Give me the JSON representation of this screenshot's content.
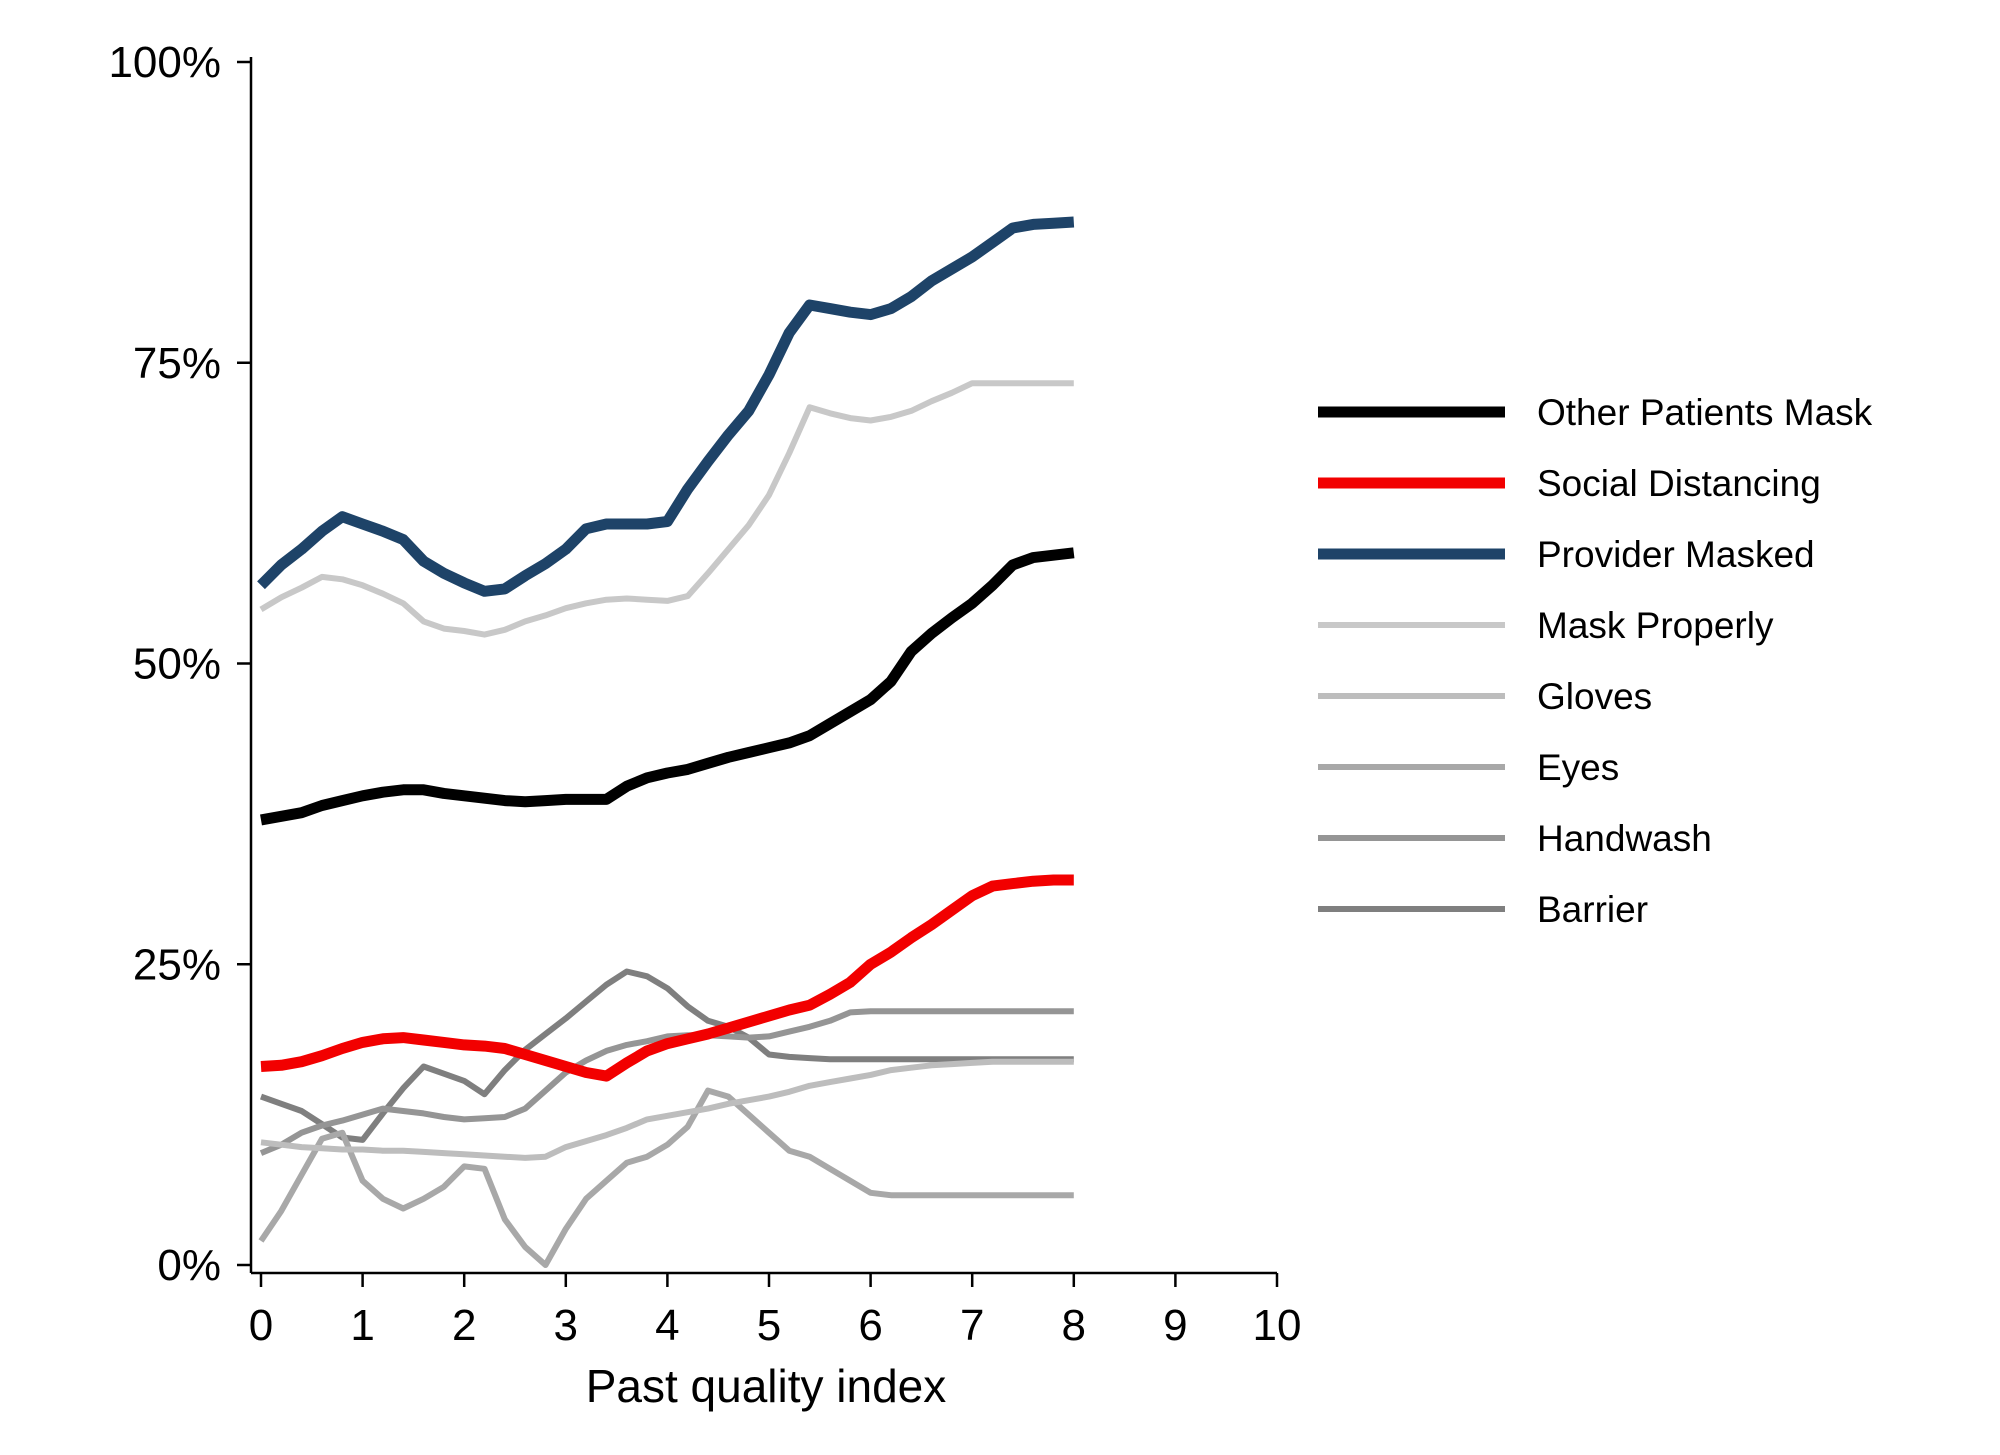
{
  "chart_data": {
    "type": "line",
    "xlabel": "Past quality index",
    "ylabel": "",
    "xlim": [
      0,
      10
    ],
    "ylim": [
      0,
      100
    ],
    "x_ticks": [
      0,
      1,
      2,
      3,
      4,
      5,
      6,
      7,
      8,
      9,
      10
    ],
    "x_tick_labels": [
      "0",
      "1",
      "2",
      "3",
      "4",
      "5",
      "6",
      "7",
      "8",
      "9",
      "10"
    ],
    "y_ticks": [
      0,
      25,
      50,
      75,
      100
    ],
    "y_tick_labels": [
      "0%",
      "25%",
      "50%",
      "75%",
      "100%"
    ],
    "grid": false,
    "legend_position": "right",
    "x": [
      0,
      0.2,
      0.4,
      0.6,
      0.8,
      1.0,
      1.2,
      1.4,
      1.6,
      1.8,
      2.0,
      2.2,
      2.4,
      2.6,
      2.8,
      3.0,
      3.2,
      3.4,
      3.6,
      3.8,
      4.0,
      4.2,
      4.4,
      4.6,
      4.8,
      5.0,
      5.2,
      5.4,
      5.6,
      5.8,
      6.0,
      6.2,
      6.4,
      6.6,
      6.8,
      7.0,
      7.2,
      7.4,
      7.6,
      7.8,
      8.0
    ],
    "series": [
      {
        "name": "Other Patients Mask",
        "color": "#000000",
        "width": 11,
        "values": [
          37.0,
          37.3,
          37.6,
          38.2,
          38.6,
          39.0,
          39.3,
          39.5,
          39.5,
          39.2,
          39.0,
          38.8,
          38.6,
          38.5,
          38.6,
          38.7,
          38.7,
          38.7,
          39.8,
          40.5,
          40.9,
          41.2,
          41.7,
          42.2,
          42.6,
          43.0,
          43.4,
          44.0,
          45.0,
          46.0,
          47.0,
          48.5,
          51.0,
          52.5,
          53.8,
          55.0,
          56.5,
          58.2,
          58.8,
          59.0,
          59.2
        ]
      },
      {
        "name": "Social Distancing",
        "color": "#f20000",
        "width": 11,
        "values": [
          16.5,
          16.6,
          16.9,
          17.4,
          18.0,
          18.5,
          18.8,
          18.9,
          18.7,
          18.5,
          18.3,
          18.2,
          18.0,
          17.5,
          17.0,
          16.5,
          16.0,
          15.7,
          16.8,
          17.8,
          18.4,
          18.8,
          19.2,
          19.7,
          20.2,
          20.7,
          21.2,
          21.6,
          22.5,
          23.5,
          25.0,
          26.0,
          27.2,
          28.3,
          29.5,
          30.7,
          31.5,
          31.7,
          31.9,
          32.0,
          32.0
        ]
      },
      {
        "name": "Provider Masked",
        "color": "#1e4368",
        "width": 11,
        "values": [
          56.5,
          58.2,
          59.5,
          61.0,
          62.2,
          61.6,
          61.0,
          60.3,
          58.5,
          57.5,
          56.7,
          56.0,
          56.2,
          57.3,
          58.3,
          59.5,
          61.2,
          61.6,
          61.6,
          61.6,
          61.8,
          64.5,
          66.8,
          69.0,
          71.0,
          74.0,
          77.5,
          79.8,
          79.5,
          79.2,
          79.0,
          79.5,
          80.5,
          81.8,
          82.8,
          83.8,
          85.0,
          86.2,
          86.5,
          86.6,
          86.7
        ]
      },
      {
        "name": "Mask Properly",
        "color": "#c8c8c8",
        "width": 6,
        "values": [
          54.5,
          55.5,
          56.3,
          57.2,
          57.0,
          56.5,
          55.8,
          55.0,
          53.5,
          52.9,
          52.7,
          52.4,
          52.8,
          53.5,
          54.0,
          54.6,
          55.0,
          55.3,
          55.4,
          55.3,
          55.2,
          55.6,
          57.5,
          59.5,
          61.5,
          64.0,
          67.5,
          71.3,
          70.8,
          70.4,
          70.2,
          70.5,
          71.0,
          71.8,
          72.5,
          73.3,
          73.3,
          73.3,
          73.3,
          73.3,
          73.3
        ]
      },
      {
        "name": "Gloves",
        "color": "#bdbdbd",
        "width": 6,
        "values": [
          10.2,
          10.0,
          9.8,
          9.7,
          9.6,
          9.6,
          9.5,
          9.5,
          9.4,
          9.3,
          9.2,
          9.1,
          9.0,
          8.9,
          9.0,
          9.8,
          10.3,
          10.8,
          11.4,
          12.1,
          12.4,
          12.7,
          13.0,
          13.4,
          13.7,
          14.0,
          14.4,
          14.9,
          15.2,
          15.5,
          15.8,
          16.2,
          16.4,
          16.6,
          16.7,
          16.8,
          16.9,
          16.9,
          16.9,
          16.9,
          16.9
        ]
      },
      {
        "name": "Eyes",
        "color": "#a8a8a8",
        "width": 6,
        "values": [
          2.0,
          4.5,
          7.5,
          10.5,
          11.0,
          7.0,
          5.5,
          4.7,
          5.5,
          6.5,
          8.2,
          8.0,
          3.8,
          1.5,
          0.0,
          3.0,
          5.5,
          7.0,
          8.5,
          9.0,
          10.0,
          11.5,
          14.5,
          14.0,
          12.5,
          11.0,
          9.5,
          9.0,
          8.0,
          7.0,
          6.0,
          5.8,
          5.8,
          5.8,
          5.8,
          5.8,
          5.8,
          5.8,
          5.8,
          5.8,
          5.8
        ]
      },
      {
        "name": "Handwash",
        "color": "#959595",
        "width": 6,
        "values": [
          9.3,
          10.0,
          11.0,
          11.6,
          12.0,
          12.5,
          13.0,
          12.8,
          12.6,
          12.3,
          12.1,
          12.2,
          12.3,
          13.0,
          14.5,
          16.0,
          17.0,
          17.8,
          18.3,
          18.6,
          19.0,
          19.1,
          19.1,
          19.0,
          18.9,
          19.0,
          19.4,
          19.8,
          20.3,
          21.0,
          21.1,
          21.1,
          21.1,
          21.1,
          21.1,
          21.1,
          21.1,
          21.1,
          21.1,
          21.1,
          21.1
        ]
      },
      {
        "name": "Barrier",
        "color": "#7f7f7f",
        "width": 6,
        "values": [
          14.0,
          13.4,
          12.8,
          11.7,
          10.6,
          10.4,
          12.6,
          14.7,
          16.5,
          15.9,
          15.3,
          14.2,
          16.2,
          17.9,
          19.2,
          20.5,
          21.9,
          23.3,
          24.4,
          24.0,
          23.0,
          21.5,
          20.3,
          19.8,
          18.9,
          17.5,
          17.3,
          17.2,
          17.1,
          17.1,
          17.1,
          17.1,
          17.1,
          17.1,
          17.1,
          17.1,
          17.1,
          17.1,
          17.1,
          17.1,
          17.1
        ]
      }
    ]
  }
}
